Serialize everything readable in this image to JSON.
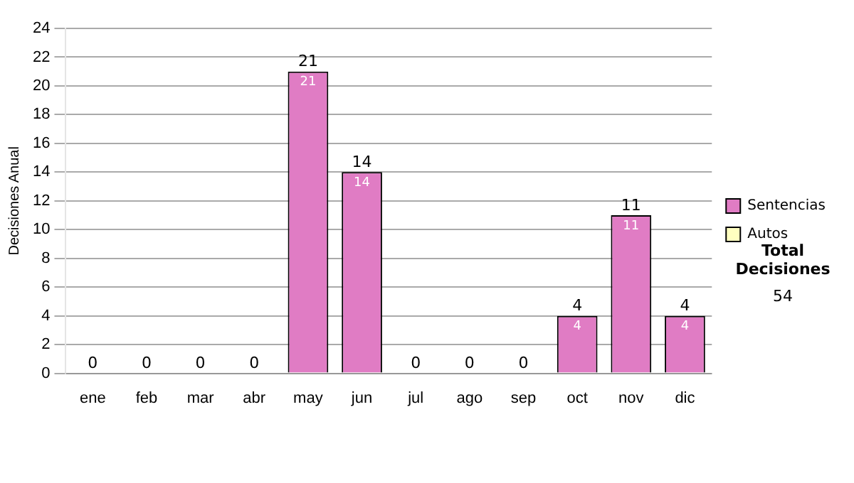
{
  "chart_data": {
    "type": "bar",
    "stacked": true,
    "ylabel": "Decisiones Anual",
    "categories": [
      "ene",
      "feb",
      "mar",
      "abr",
      "may",
      "jun",
      "jul",
      "ago",
      "sep",
      "oct",
      "nov",
      "dic"
    ],
    "series": [
      {
        "name": "Sentencias",
        "color": "#e07cc4",
        "values": [
          0,
          0,
          0,
          0,
          21,
          14,
          0,
          0,
          0,
          4,
          11,
          4
        ],
        "value_labels": [
          null,
          null,
          null,
          null,
          "21",
          "14",
          null,
          null,
          null,
          "4",
          "11",
          "4"
        ]
      },
      {
        "name": "Autos",
        "color": "#ffffc0",
        "values": [
          0,
          0,
          0,
          0,
          0,
          0,
          0,
          0,
          0,
          0,
          0,
          0
        ]
      }
    ],
    "totals": [
      "0",
      "0",
      "0",
      "0",
      "21",
      "14",
      "0",
      "0",
      "0",
      "4",
      "11",
      "4"
    ],
    "ylim": [
      0,
      24
    ],
    "yticks": [
      0,
      2,
      4,
      6,
      8,
      10,
      12,
      14,
      16,
      18,
      20,
      22,
      24
    ],
    "grid": "y",
    "legend": "right",
    "annotations": [
      "Total Decisiones",
      "54"
    ]
  }
}
